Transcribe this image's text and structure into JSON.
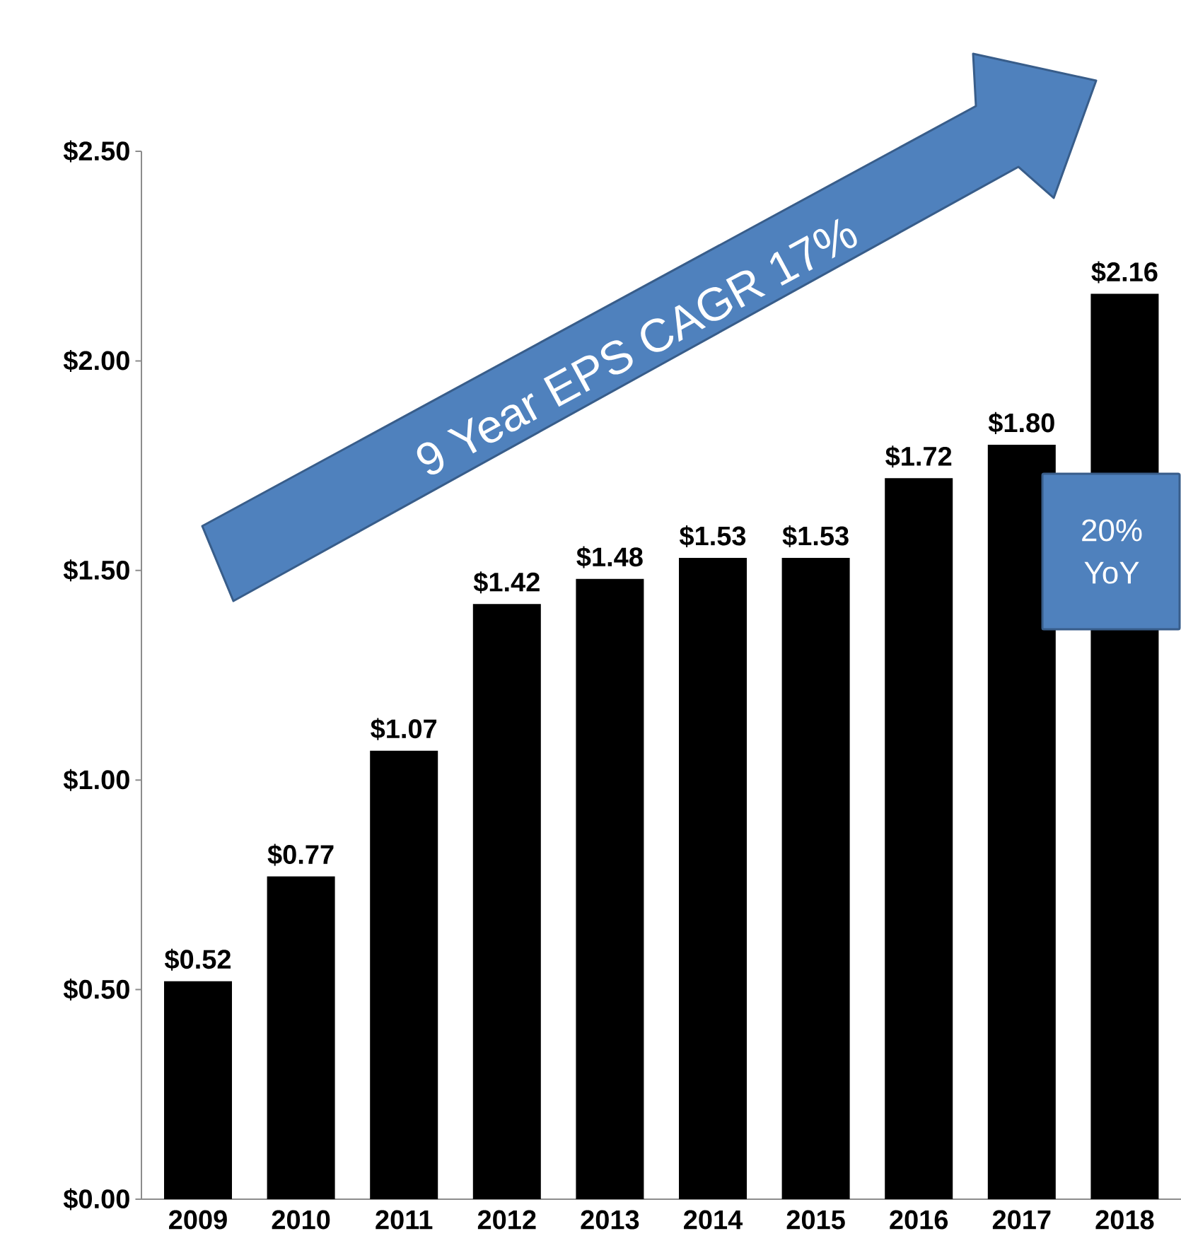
{
  "chart_data": {
    "type": "bar",
    "categories": [
      "2009",
      "2010",
      "2011",
      "2012",
      "2013",
      "2014",
      "2015",
      "2016",
      "2017",
      "2018"
    ],
    "values": [
      0.52,
      0.77,
      1.07,
      1.42,
      1.48,
      1.53,
      1.53,
      1.72,
      1.8,
      2.16
    ],
    "value_labels": [
      "$0.52",
      "$0.77",
      "$1.07",
      "$1.42",
      "$1.48",
      "$1.53",
      "$1.53",
      "$1.72",
      "$1.80",
      "$2.16"
    ],
    "color": "#000000",
    "ylim": [
      0,
      2.5
    ],
    "yticks": [
      {
        "value": 0,
        "label": "$0.00"
      },
      {
        "value": 0.5,
        "label": "$0.50"
      },
      {
        "value": 1,
        "label": "$1.00"
      },
      {
        "value": 1.5,
        "label": "$1.50"
      },
      {
        "value": 2,
        "label": "$2.00"
      },
      {
        "value": 2.5,
        "label": "$2.50"
      }
    ],
    "annotations": [
      "9 Year EPS CAGR 17%",
      "20% YoY"
    ],
    "grid": false
  }
}
